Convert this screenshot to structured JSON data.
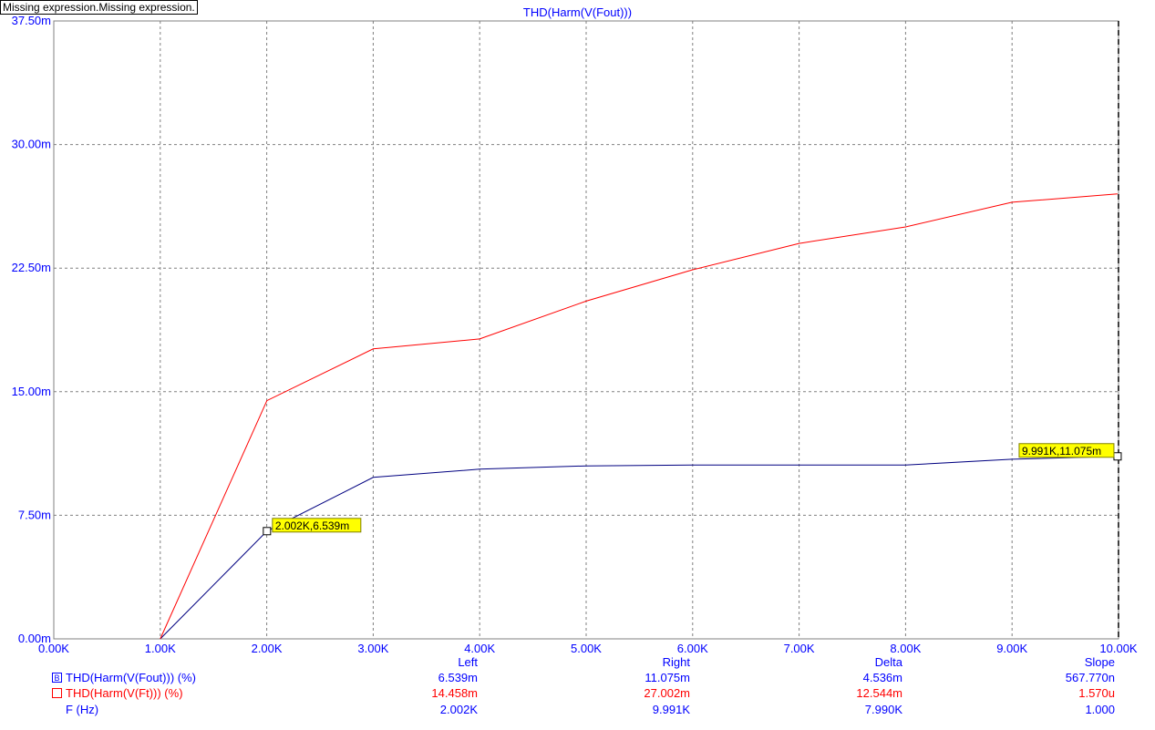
{
  "warning_label": "Missing expression.Missing expression.",
  "chart_data": {
    "type": "line",
    "title": "THD(Harm(V(Fout)))",
    "xlabel": "",
    "ylabel": "",
    "xlim": [
      0,
      10000
    ],
    "ylim": [
      0,
      37.5
    ],
    "x_ticks": [
      "0.00K",
      "1.00K",
      "2.00K",
      "3.00K",
      "4.00K",
      "5.00K",
      "6.00K",
      "7.00K",
      "8.00K",
      "9.00K",
      "10.00K"
    ],
    "y_ticks": [
      "0.00m",
      "7.50m",
      "15.00m",
      "22.50m",
      "30.00m",
      "37.50m"
    ],
    "grid": true,
    "series": [
      {
        "name": "THD(Harm(V(Fout))) (%)",
        "color": "#000080",
        "x": [
          1000,
          2002,
          3000,
          4000,
          5000,
          6000,
          7000,
          8000,
          9000,
          9991
        ],
        "y": [
          0.0,
          6.539,
          9.8,
          10.3,
          10.5,
          10.55,
          10.55,
          10.55,
          10.9,
          11.075
        ]
      },
      {
        "name": "THD(Harm(V(Ft))) (%)",
        "color": "#ff0000",
        "x": [
          1000,
          2002,
          3000,
          4000,
          5000,
          6000,
          7000,
          8000,
          9000,
          9991
        ],
        "y": [
          0.0,
          14.458,
          17.6,
          18.2,
          20.5,
          22.4,
          24.0,
          25.0,
          26.5,
          27.002
        ]
      }
    ],
    "cursors": [
      {
        "series": 0,
        "x": 2002,
        "y": 6.539,
        "label": "2.002K,6.539m"
      },
      {
        "series": 0,
        "x": 9991,
        "y": 11.075,
        "label": "9.991K,11.075m"
      }
    ]
  },
  "table": {
    "headers": [
      "Left",
      "Right",
      "Delta",
      "Slope"
    ],
    "rows": [
      {
        "marker": "B",
        "label": "THD(Harm(V(Fout))) (%)",
        "color": "#0000ff",
        "values": [
          "6.539m",
          "11.075m",
          "4.536m",
          "567.770n"
        ]
      },
      {
        "marker": "",
        "label": "THD(Harm(V(Ft))) (%)",
        "color": "#ff0000",
        "values": [
          "14.458m",
          "27.002m",
          "12.544m",
          "1.570u"
        ]
      },
      {
        "marker": "",
        "label": "F (Hz)",
        "color": "#0000ff",
        "values": [
          "2.002K",
          "9.991K",
          "7.990K",
          "1.000"
        ]
      }
    ]
  }
}
